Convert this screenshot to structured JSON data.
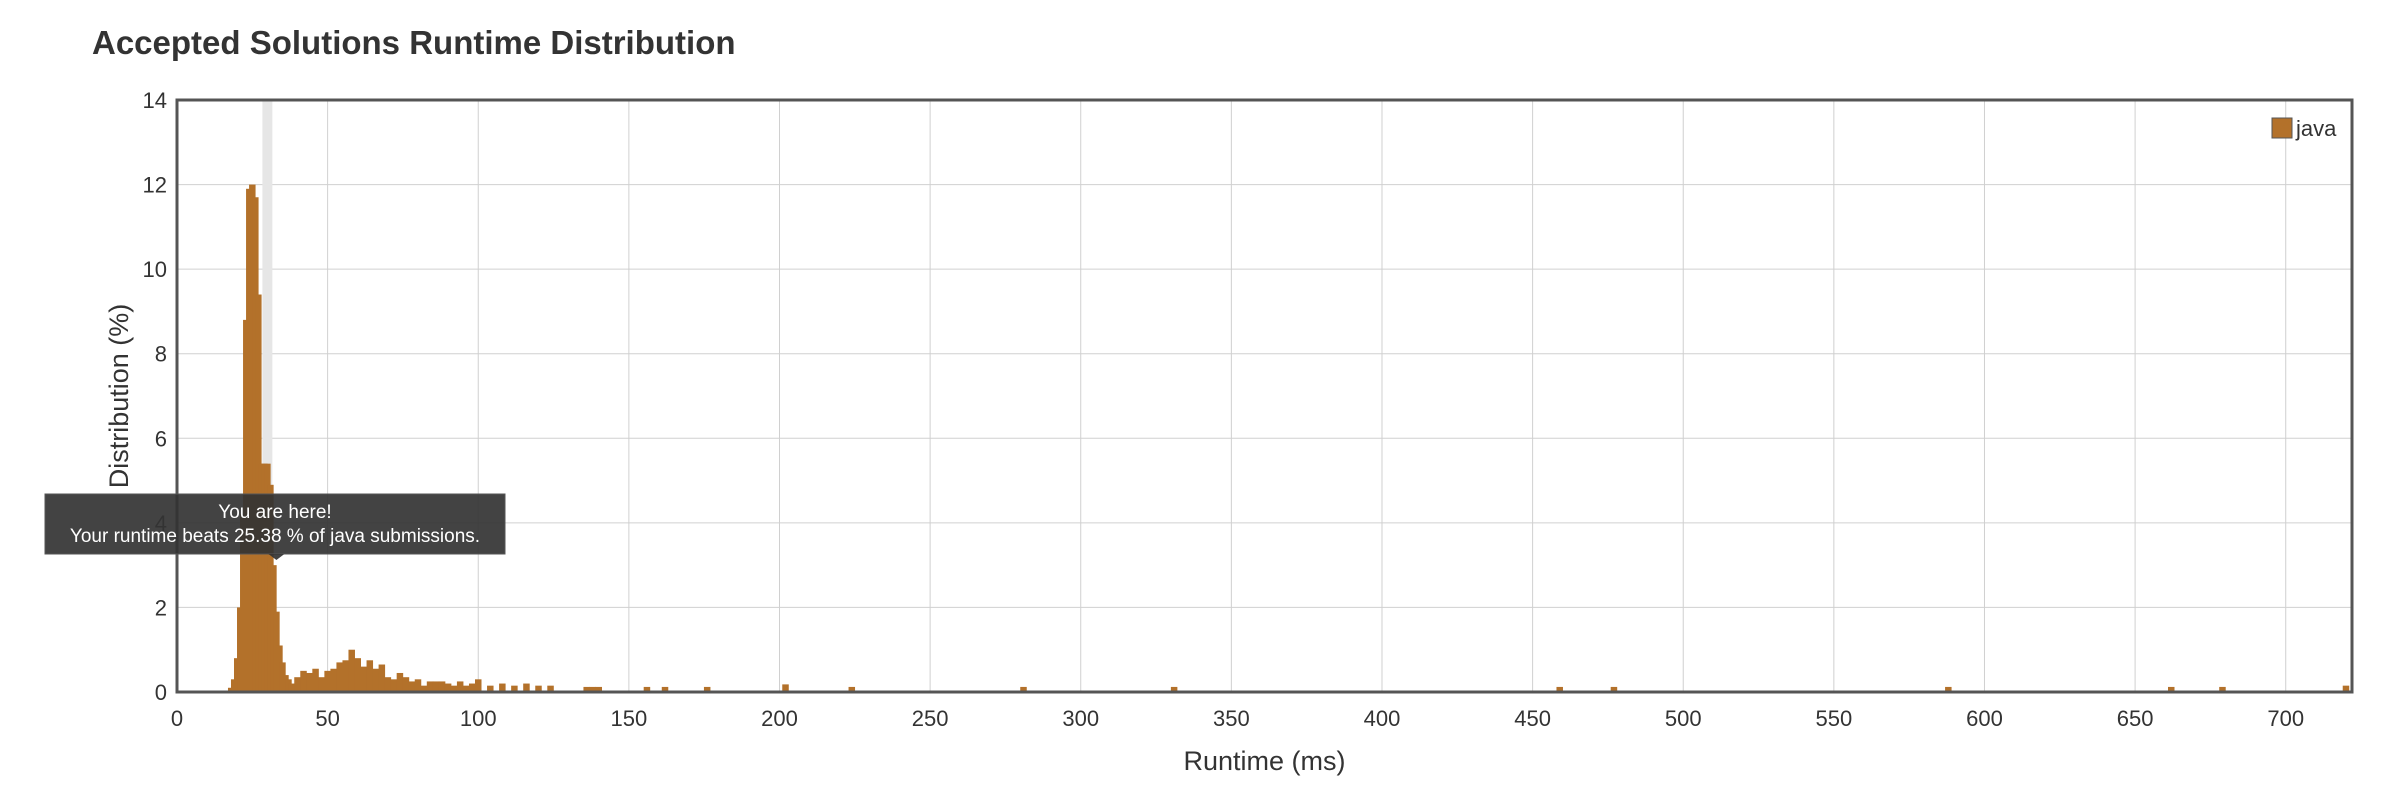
{
  "chart_data": {
    "type": "bar",
    "title": "Accepted Solutions Runtime Distribution",
    "xlabel": "Runtime (ms)",
    "ylabel": "Distribution (%)",
    "xlim": [
      0,
      722
    ],
    "ylim": [
      0,
      14
    ],
    "x_ticks": [
      0,
      50,
      100,
      150,
      200,
      250,
      300,
      350,
      400,
      450,
      500,
      550,
      600,
      650,
      700
    ],
    "y_ticks": [
      0,
      2,
      4,
      6,
      8,
      10,
      12,
      14
    ],
    "grid": true,
    "legend": {
      "position": "top-right"
    },
    "highlight_x": 30,
    "series": [
      {
        "name": "java",
        "color": "#b3712a",
        "x": [
          18,
          19,
          20,
          21,
          22,
          23,
          24,
          25,
          26,
          27,
          28,
          29,
          30,
          31,
          32,
          33,
          34,
          35,
          36,
          37,
          38,
          39,
          40,
          42,
          44,
          46,
          48,
          50,
          52,
          54,
          56,
          58,
          60,
          62,
          64,
          66,
          68,
          70,
          72,
          74,
          76,
          78,
          80,
          82,
          84,
          86,
          88,
          90,
          92,
          94,
          96,
          98,
          100,
          104,
          108,
          112,
          116,
          120,
          124,
          136,
          138,
          140,
          156,
          162,
          176,
          202,
          224,
          281,
          331,
          459,
          477,
          588,
          662,
          679,
          720
        ],
        "values": [
          0.1,
          0.3,
          0.8,
          2.0,
          4.2,
          8.8,
          11.9,
          12.0,
          11.7,
          9.4,
          5.4,
          5.4,
          5.4,
          4.9,
          3.0,
          1.9,
          1.1,
          0.7,
          0.4,
          0.3,
          0.2,
          0.15,
          0.35,
          0.5,
          0.45,
          0.55,
          0.35,
          0.5,
          0.55,
          0.7,
          0.75,
          1.0,
          0.8,
          0.6,
          0.75,
          0.55,
          0.65,
          0.35,
          0.3,
          0.45,
          0.35,
          0.25,
          0.3,
          0.15,
          0.25,
          0.25,
          0.25,
          0.2,
          0.15,
          0.25,
          0.15,
          0.2,
          0.3,
          0.15,
          0.2,
          0.15,
          0.2,
          0.15,
          0.15,
          0.12,
          0.12,
          0.12,
          0.12,
          0.12,
          0.12,
          0.18,
          0.12,
          0.12,
          0.12,
          0.12,
          0.12,
          0.12,
          0.12,
          0.12,
          0.15
        ]
      }
    ],
    "tooltip": {
      "line1": "You are here!",
      "line2": "Your runtime beats 25.38 % of java submissions."
    }
  }
}
